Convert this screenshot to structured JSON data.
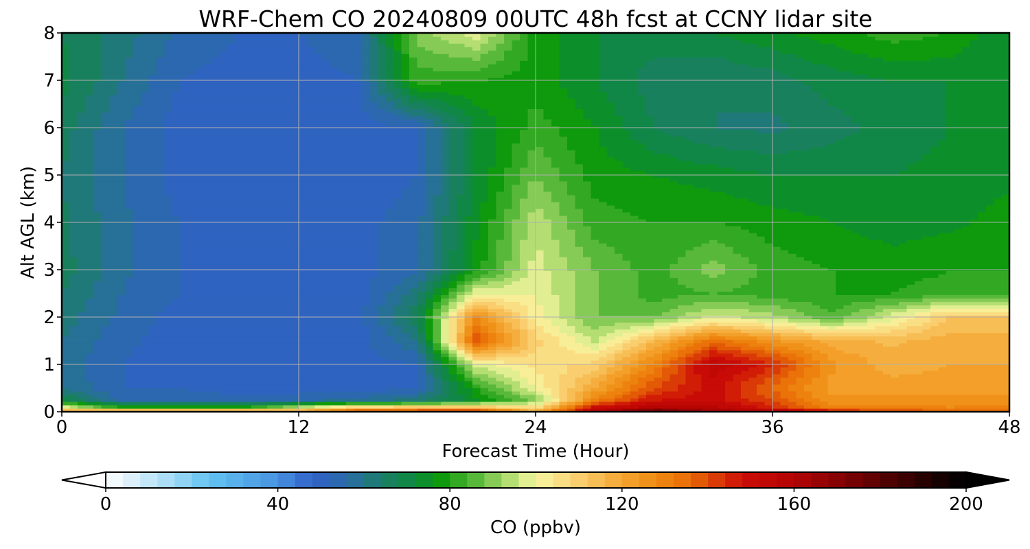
{
  "chart_data": [
    {
      "type": "heatmap",
      "title": "WRF-Chem CO  20240809 00UTC 48h fcst at CCNY lidar site",
      "xlabel": "Forecast Time (Hour)",
      "ylabel": "Alt AGL (km)",
      "xlim": [
        0,
        48
      ],
      "ylim": [
        0,
        8
      ],
      "xticks": [
        0,
        12,
        24,
        36,
        48
      ],
      "yticks": [
        0,
        1,
        2,
        3,
        4,
        5,
        6,
        7,
        8
      ],
      "grid": true,
      "x_hours": [
        0,
        3,
        6,
        9,
        12,
        15,
        18,
        21,
        24,
        27,
        30,
        33,
        36,
        39,
        42,
        45,
        48
      ],
      "y_km": [
        0,
        0.1,
        0.25,
        0.5,
        1,
        1.5,
        2,
        2.5,
        3,
        4,
        5,
        6,
        7,
        8
      ],
      "z_ppbv": [
        [
          125,
          135,
          135,
          135,
          125,
          145,
          150,
          150,
          120,
          160,
          180,
          165,
          160,
          150,
          140,
          140,
          135
        ],
        [
          100,
          80,
          78,
          78,
          95,
          110,
          112,
          112,
          105,
          150,
          160,
          158,
          145,
          130,
          130,
          128,
          130
        ],
        [
          70,
          55,
          55,
          53,
          55,
          58,
          62,
          75,
          90,
          130,
          148,
          150,
          140,
          125,
          125,
          125,
          125
        ],
        [
          60,
          52,
          52,
          50,
          50,
          50,
          52,
          80,
          100,
          120,
          140,
          150,
          135,
          122,
          122,
          122,
          122
        ],
        [
          58,
          52,
          50,
          50,
          50,
          50,
          52,
          98,
          105,
          110,
          130,
          155,
          145,
          125,
          118,
          120,
          120
        ],
        [
          60,
          53,
          50,
          50,
          50,
          50,
          60,
          140,
          110,
          95,
          115,
          135,
          125,
          118,
          115,
          118,
          118
        ],
        [
          62,
          55,
          50,
          50,
          50,
          50,
          68,
          128,
          102,
          88,
          88,
          98,
          94,
          85,
          98,
          112,
          112
        ],
        [
          64,
          56,
          52,
          50,
          50,
          50,
          62,
          100,
          100,
          88,
          82,
          84,
          82,
          80,
          80,
          82,
          82
        ],
        [
          66,
          57,
          52,
          50,
          50,
          50,
          55,
          78,
          98,
          88,
          82,
          90,
          82,
          80,
          78,
          80,
          80
        ],
        [
          65,
          57,
          52,
          50,
          50,
          50,
          55,
          75,
          95,
          82,
          80,
          80,
          78,
          76,
          74,
          75,
          78
        ],
        [
          64,
          56,
          50,
          48,
          48,
          48,
          52,
          72,
          88,
          78,
          76,
          74,
          72,
          72,
          72,
          73,
          75
        ],
        [
          66,
          56,
          50,
          48,
          48,
          50,
          52,
          72,
          82,
          76,
          68,
          64,
          63,
          66,
          70,
          72,
          73
        ],
        [
          70,
          60,
          52,
          50,
          50,
          52,
          82,
          80,
          78,
          72,
          66,
          64,
          66,
          70,
          72,
          72,
          72
        ],
        [
          68,
          62,
          55,
          52,
          52,
          55,
          90,
          98,
          78,
          72,
          70,
          72,
          75,
          78,
          82,
          80,
          72
        ]
      ],
      "colorbar": {
        "label": "CO  (ppbv)",
        "min": 0,
        "max": 200,
        "ticks": [
          0,
          40,
          80,
          120,
          160,
          200
        ],
        "extend": "both"
      }
    }
  ],
  "colors": {
    "colormap": [
      [
        0,
        "#ffffff"
      ],
      [
        16,
        "#9fd8f5"
      ],
      [
        24,
        "#62c3f2"
      ],
      [
        40,
        "#4793e0"
      ],
      [
        48,
        "#3060c8"
      ],
      [
        56,
        "#2a6ba6"
      ],
      [
        64,
        "#1d7d6a"
      ],
      [
        72,
        "#0b8a3b"
      ],
      [
        78,
        "#0e9a0c"
      ],
      [
        86,
        "#58b83a"
      ],
      [
        94,
        "#b4de72"
      ],
      [
        100,
        "#f8f6a2"
      ],
      [
        108,
        "#fbd67a"
      ],
      [
        120,
        "#f4a632"
      ],
      [
        128,
        "#ee8a10"
      ],
      [
        136,
        "#e86a06"
      ],
      [
        148,
        "#cc0c06"
      ],
      [
        160,
        "#b30404"
      ],
      [
        176,
        "#6c0202"
      ],
      [
        192,
        "#1d0000"
      ],
      [
        200,
        "#000000"
      ]
    ],
    "grid": "#b0b0b0",
    "axis": "#000000"
  }
}
